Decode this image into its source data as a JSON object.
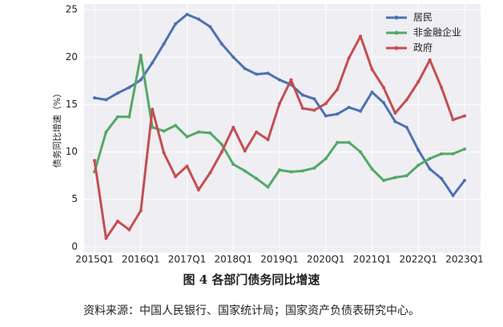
{
  "chart_data": {
    "type": "line",
    "title": "图 4 各部门债务同比增速",
    "note": "资料来源：中国人民银行、国家统计局；国家资产负债表研究中心。",
    "ylabel": "债务同比增速（%）",
    "categories": [
      "2015Q1",
      null,
      null,
      null,
      "2016Q1",
      null,
      null,
      null,
      "2017Q1",
      null,
      null,
      null,
      "2018Q1",
      null,
      null,
      null,
      "2019Q1",
      null,
      null,
      null,
      "2020Q1",
      null,
      null,
      null,
      "2021Q1",
      null,
      null,
      null,
      "2022Q1",
      null,
      null,
      null,
      "2023Q1"
    ],
    "series": [
      {
        "name": "居民",
        "color": "#4c72b0",
        "values": [
          15.7,
          15.5,
          16.2,
          16.8,
          17.6,
          19.4,
          21.4,
          23.5,
          24.5,
          24.0,
          23.2,
          21.4,
          20.0,
          18.8,
          18.2,
          18.3,
          17.6,
          17.1,
          16.0,
          15.6,
          13.8,
          14.0,
          14.7,
          14.3,
          16.3,
          15.2,
          13.2,
          12.6,
          10.2,
          8.2,
          7.2,
          5.4,
          7.0
        ]
      },
      {
        "name": "非金融企业",
        "color": "#55a868",
        "values": [
          7.9,
          12.1,
          13.7,
          13.7,
          20.2,
          12.6,
          12.2,
          12.8,
          11.6,
          12.1,
          12.0,
          10.8,
          8.7,
          8.0,
          7.2,
          6.3,
          8.1,
          7.9,
          8.0,
          8.3,
          9.3,
          11.0,
          11.0,
          10.0,
          8.2,
          7.0,
          7.3,
          7.5,
          8.6,
          9.3,
          9.8,
          9.8,
          10.3
        ]
      },
      {
        "name": "政府",
        "color": "#c44e52",
        "values": [
          9.1,
          0.9,
          2.7,
          1.8,
          3.8,
          14.5,
          9.9,
          7.4,
          8.5,
          6.0,
          7.8,
          10.0,
          12.6,
          10.1,
          12.1,
          11.3,
          15.1,
          17.6,
          14.6,
          14.4,
          15.1,
          16.6,
          19.9,
          22.2,
          18.7,
          16.8,
          14.1,
          15.5,
          17.4,
          19.7,
          16.8,
          13.4,
          13.8
        ]
      }
    ],
    "ylim": [
      -0.6,
      25.6
    ],
    "yticks": [
      0,
      5,
      10,
      15,
      20,
      25
    ],
    "grid": true,
    "legend": "upper right"
  }
}
